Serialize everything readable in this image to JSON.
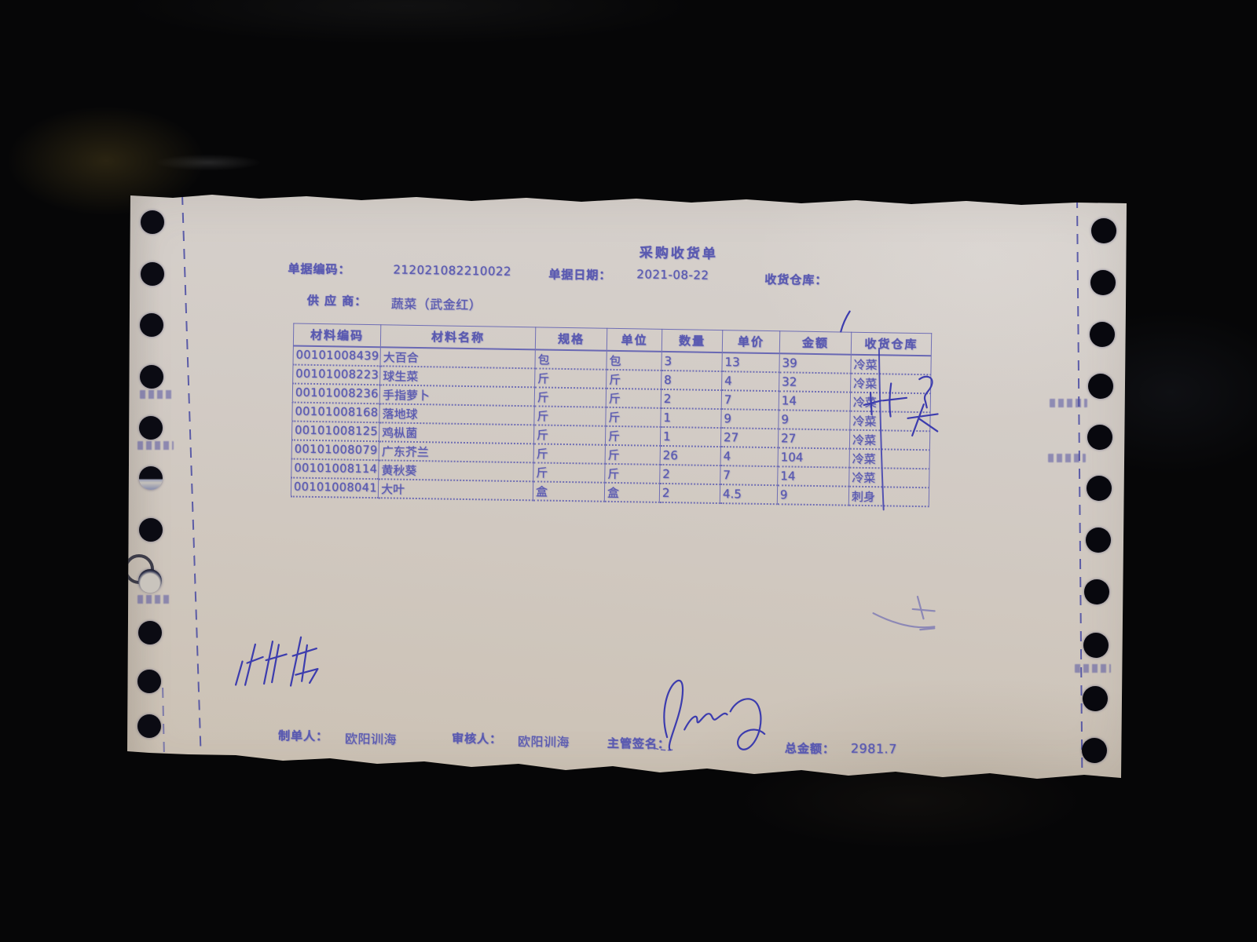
{
  "title": "采购收货单",
  "colors": {
    "paper": "#d2cbc5",
    "ink": "#5a5ab0",
    "pen": "#3c3cae",
    "background": "#060607"
  },
  "fields": {
    "doc_no_label": "单据编码：",
    "doc_no": "212021082210022",
    "date_label": "单据日期：",
    "date": "2021-08-22",
    "warehouse_label": "收货仓库：",
    "supplier_label": "供 应 商：",
    "supplier": "蔬菜（武金红）"
  },
  "table": {
    "headers": [
      "材料编码",
      "材料名称",
      "规格",
      "单位",
      "数量",
      "单价",
      "金额",
      "收货仓库"
    ],
    "rows": [
      [
        "00101008439",
        "大百合",
        "包",
        "包",
        "3",
        "13",
        "39",
        "冷菜"
      ],
      [
        "00101008223",
        "球生菜",
        "斤",
        "斤",
        "8",
        "4",
        "32",
        "冷菜"
      ],
      [
        "00101008236",
        "手指萝卜",
        "斤",
        "斤",
        "2",
        "7",
        "14",
        "冷菜"
      ],
      [
        "00101008168",
        "落地球",
        "斤",
        "斤",
        "1",
        "9",
        "9",
        "冷菜"
      ],
      [
        "00101008125",
        "鸡枞菌",
        "斤",
        "斤",
        "1",
        "27",
        "27",
        "冷菜"
      ],
      [
        "00101008079",
        "广东芥兰",
        "斤",
        "斤",
        "26",
        "4",
        "104",
        "冷菜"
      ],
      [
        "00101008114",
        "黄秋葵",
        "斤",
        "斤",
        "2",
        "7",
        "14",
        "冷菜"
      ],
      [
        "00101008041",
        "大叶",
        "盒",
        "盒",
        "2",
        "4.5",
        "9",
        "刺身"
      ]
    ]
  },
  "footer": {
    "maker_label": "制单人：",
    "maker": "欧阳训海",
    "auditor_label": "审核人：",
    "auditor": "欧阳训海",
    "manager_sign_label": "主管签名：",
    "total_label": "总金额：",
    "total": "2981.7"
  }
}
